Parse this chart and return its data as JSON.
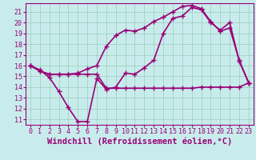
{
  "xlabel": "Windchill (Refroidissement éolien,°C)",
  "background_color": "#c8ecec",
  "grid_color": "#99ccbb",
  "line_color": "#990077",
  "xlim": [
    -0.5,
    23.5
  ],
  "ylim": [
    10.5,
    21.8
  ],
  "xticks": [
    0,
    1,
    2,
    3,
    4,
    5,
    6,
    7,
    8,
    9,
    10,
    11,
    12,
    13,
    14,
    15,
    16,
    17,
    18,
    19,
    20,
    21,
    22,
    23
  ],
  "yticks": [
    11,
    12,
    13,
    14,
    15,
    16,
    17,
    18,
    19,
    20,
    21
  ],
  "series": [
    {
      "x": [
        0,
        1,
        2,
        3,
        4,
        5,
        6,
        7,
        8,
        9,
        10,
        11,
        12,
        13,
        14,
        15,
        16,
        17,
        18,
        19,
        20,
        21,
        22,
        23
      ],
      "y": [
        16.0,
        15.6,
        14.9,
        13.6,
        12.1,
        10.8,
        10.8,
        14.8,
        13.8,
        14.0,
        15.3,
        15.2,
        15.8,
        16.5,
        19.0,
        20.4,
        20.6,
        21.4,
        21.2,
        20.0,
        19.3,
        20.0,
        16.4,
        14.4
      ]
    },
    {
      "x": [
        0,
        1,
        2,
        3,
        4,
        5,
        6,
        7,
        8,
        9,
        10,
        11,
        12,
        13,
        14,
        15,
        16,
        17,
        18,
        19,
        20,
        21,
        22,
        23
      ],
      "y": [
        16.0,
        15.5,
        15.2,
        15.2,
        15.2,
        15.2,
        15.2,
        15.2,
        13.9,
        13.9,
        13.9,
        13.9,
        13.9,
        13.9,
        13.9,
        13.9,
        13.9,
        13.9,
        14.0,
        14.0,
        14.0,
        14.0,
        14.0,
        14.4
      ]
    },
    {
      "x": [
        0,
        1,
        2,
        3,
        4,
        5,
        6,
        7,
        8,
        9,
        10,
        11,
        12,
        13,
        14,
        15,
        16,
        17,
        18,
        19,
        20,
        21,
        22,
        23
      ],
      "y": [
        16.0,
        15.5,
        15.2,
        15.2,
        15.2,
        15.3,
        15.7,
        16.0,
        17.8,
        18.8,
        19.3,
        19.2,
        19.5,
        20.1,
        20.5,
        21.0,
        21.5,
        21.6,
        21.3,
        20.1,
        19.2,
        19.5,
        16.5,
        14.4
      ]
    }
  ],
  "marker": "+",
  "marker_size": 4,
  "linewidth": 1.2,
  "tick_fontsize": 6,
  "xlabel_fontsize": 7.5
}
